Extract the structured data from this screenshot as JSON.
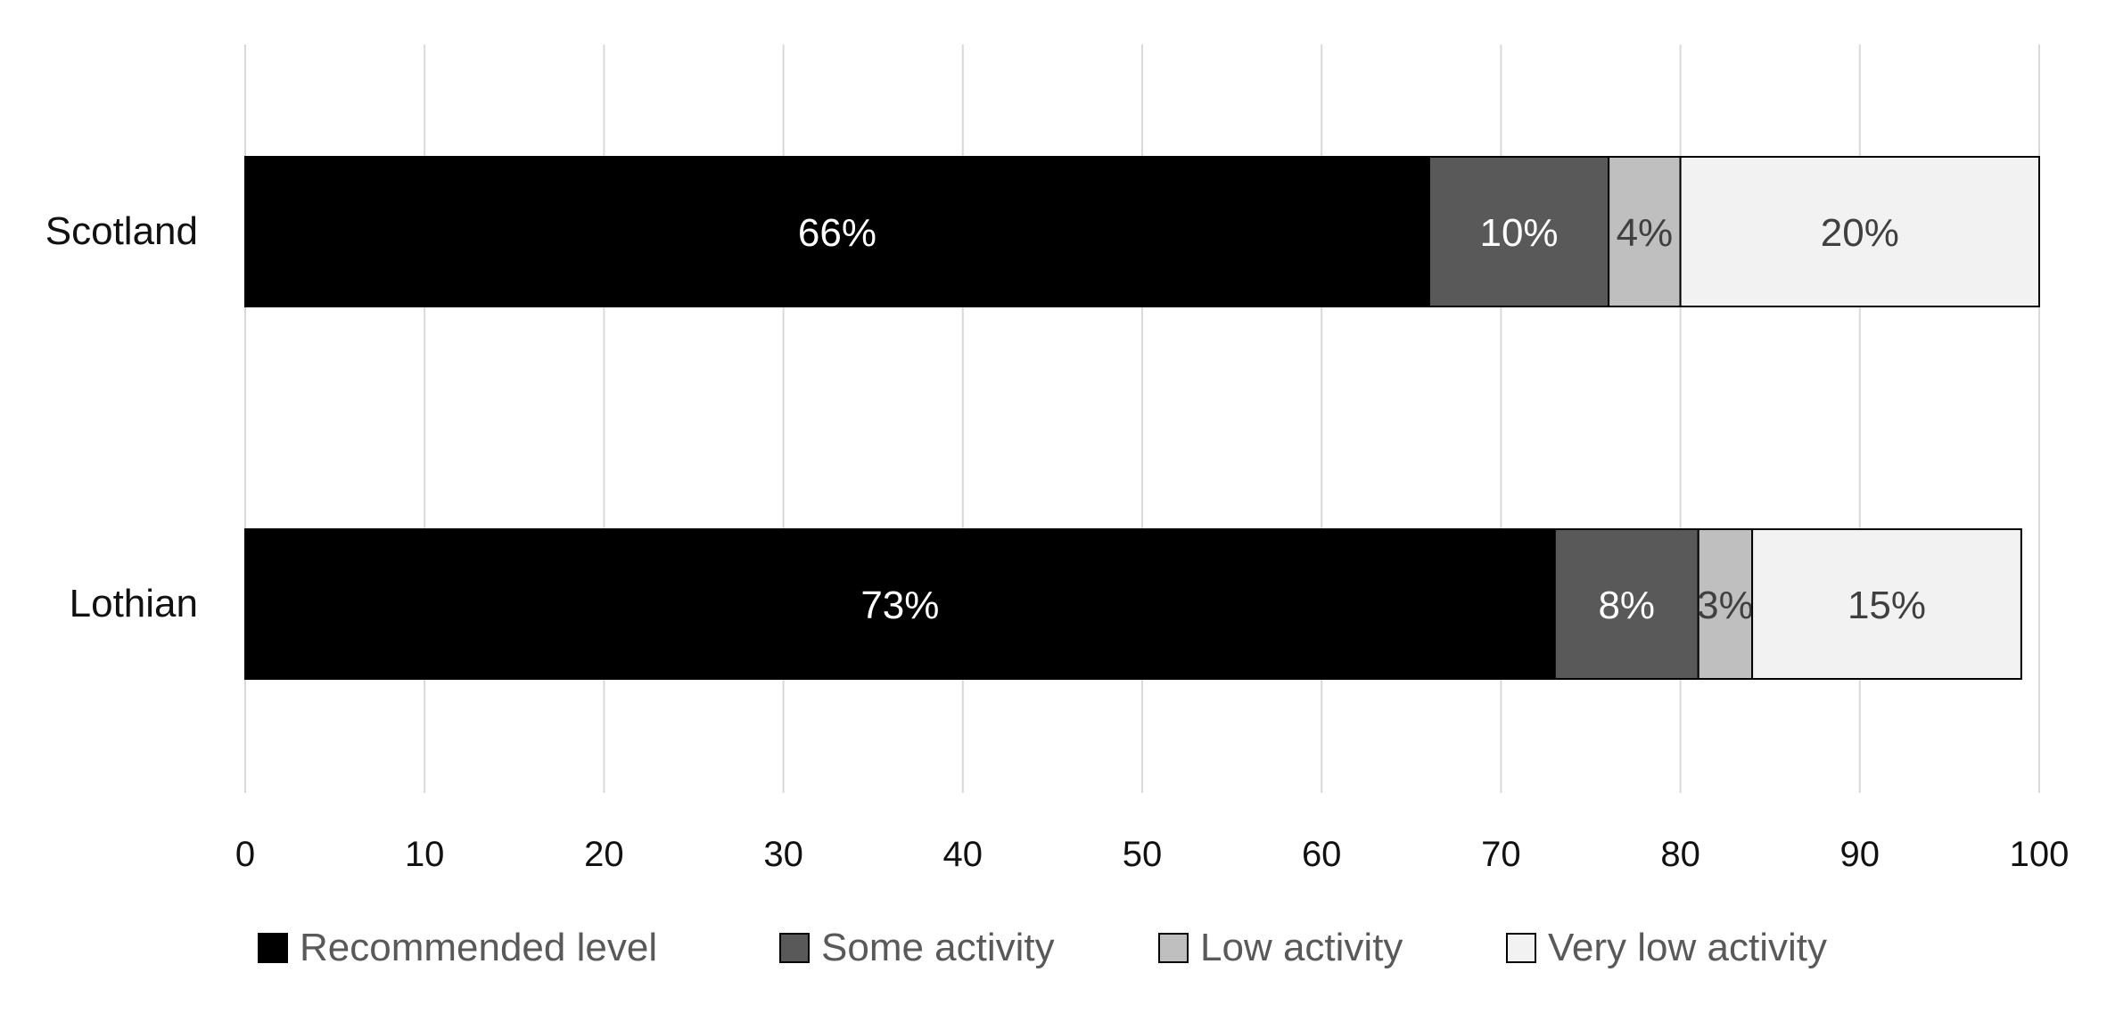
{
  "chart_data": {
    "type": "bar",
    "orientation": "horizontal",
    "stacked": true,
    "categories": [
      "Scotland",
      "Lothian"
    ],
    "series": [
      {
        "name": "Recommended level",
        "values": [
          66,
          73
        ],
        "labels": [
          "66%",
          "73%"
        ],
        "color": "#000000",
        "label_color": "#ffffff"
      },
      {
        "name": "Some activity",
        "values": [
          10,
          8
        ],
        "labels": [
          "10%",
          "8%"
        ],
        "color": "#595959",
        "label_color": "#ffffff"
      },
      {
        "name": "Low activity",
        "values": [
          4,
          3
        ],
        "labels": [
          "4%",
          "3%"
        ],
        "color": "#bfbfbf",
        "label_color": "#404040"
      },
      {
        "name": "Very low activity",
        "values": [
          20,
          15
        ],
        "labels": [
          "20%",
          "15%"
        ],
        "color": "#f2f2f2",
        "label_color": "#404040"
      }
    ],
    "xlim": [
      0,
      100
    ],
    "x_ticks": [
      "0",
      "10",
      "20",
      "30",
      "40",
      "50",
      "60",
      "70",
      "80",
      "90",
      "100"
    ],
    "grid": true,
    "legend_position": "bottom"
  }
}
